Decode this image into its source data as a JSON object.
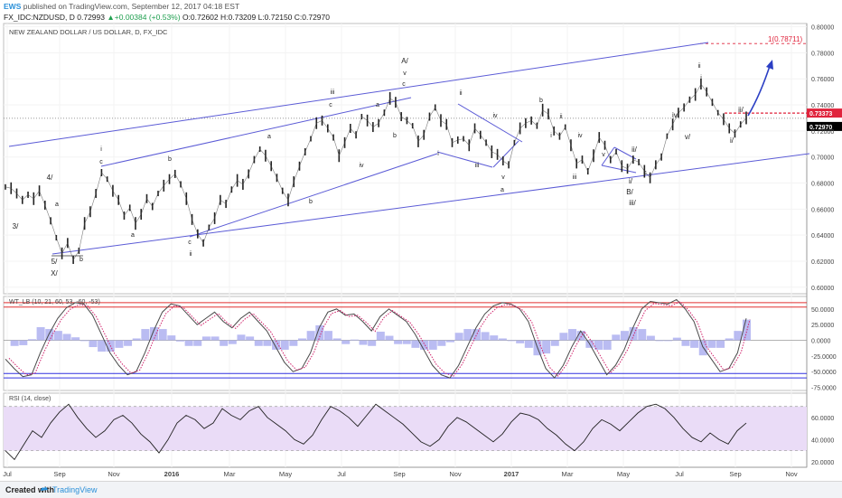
{
  "header": {
    "user": "EWS",
    "published_text": "published on TradingView.com, September 12, 2017 04:18 EST",
    "symbol_line": "FX_IDC:NZDUSD, D",
    "price": "0.72993",
    "change": "+0.00384 (+0.53%)",
    "ohlc": "O:0.72602 H:0.73209 L:0.72150 C:0.72970"
  },
  "footer": {
    "created_with": "Created with",
    "brand": "TradingView"
  },
  "colors": {
    "pattern_line": "#5b5bd6",
    "target_arrow": "#2b3fc4",
    "red_level": "#e0243c",
    "osc_main": "#4a4a4a",
    "osc_signal": "#d0206a",
    "rsi_band": "#eadcf7",
    "histogram": "#a9abef"
  },
  "chart_data": [
    {
      "type": "line",
      "title": "NEW ZEALAND DOLLAR / US DOLLAR, D, FX_IDC",
      "x_ticks": [
        "Jul",
        "Sep",
        "Nov",
        "2016",
        "Mar",
        "May",
        "Jul",
        "Sep",
        "Nov",
        "2017",
        "Mar",
        "May",
        "Jul",
        "Sep",
        "Nov"
      ],
      "y_ticks": [
        "0.80000",
        "0.78000",
        "0.76000",
        "0.74000",
        "0.72000",
        "0.70000",
        "0.68000",
        "0.66000",
        "0.64000",
        "0.62000",
        "0.60000"
      ],
      "ylim": [
        0.595,
        0.8025
      ],
      "series": [
        {
          "values": [
            0.677,
            0.676,
            0.672,
            0.667,
            0.671,
            0.668,
            0.674,
            0.663,
            0.651,
            0.638,
            0.626,
            0.634,
            0.621,
            0.628,
            0.649,
            0.658,
            0.672,
            0.688,
            0.683,
            0.674,
            0.667,
            0.655,
            0.661,
            0.649,
            0.656,
            0.668,
            0.662,
            0.672,
            0.678,
            0.683,
            0.687,
            0.679,
            0.668,
            0.652,
            0.641,
            0.634,
            0.646,
            0.653,
            0.667,
            0.664,
            0.675,
            0.682,
            0.679,
            0.687,
            0.698,
            0.706,
            0.701,
            0.693,
            0.684,
            0.674,
            0.667,
            0.681,
            0.693,
            0.704,
            0.714,
            0.726,
            0.728,
            0.722,
            0.715,
            0.701,
            0.711,
            0.722,
            0.717,
            0.731,
            0.728,
            0.723,
            0.726,
            0.734,
            0.745,
            0.742,
            0.731,
            0.728,
            0.724,
            0.712,
            0.717,
            0.731,
            0.738,
            0.728,
            0.725,
            0.711,
            0.713,
            0.714,
            0.709,
            0.722,
            0.717,
            0.711,
            0.704,
            0.702,
            0.697,
            0.694,
            0.711,
            0.722,
            0.726,
            0.728,
            0.724,
            0.736,
            0.733,
            0.72,
            0.716,
            0.723,
            0.709,
            0.695,
            0.698,
            0.689,
            0.701,
            0.715,
            0.709,
            0.698,
            0.704,
            0.693,
            0.691,
            0.698,
            0.696,
            0.689,
            0.684,
            0.694,
            0.7,
            0.716,
            0.725,
            0.734,
            0.738,
            0.744,
            0.748,
            0.756,
            0.75,
            0.742,
            0.734,
            0.729,
            0.722,
            0.718,
            0.725,
            0.73
          ]
        }
      ],
      "price_labels": [
        "0.73373",
        "0.72970"
      ],
      "target_label": "1(0.78711)",
      "annotations": [
        "3/",
        "4/",
        "a",
        "5/",
        "X/",
        "b",
        "i",
        "c",
        "a",
        "b",
        "c",
        "ii",
        "a",
        "b",
        "iii",
        "c",
        "iv",
        "a",
        "b",
        "A/",
        "v",
        "c",
        "i",
        "ii",
        "iii",
        "iv",
        "v",
        "a",
        "b",
        "i",
        "ii",
        "iii",
        "iv",
        "v",
        "i/",
        "ii/",
        "c",
        "B/",
        "iii/",
        "iv/",
        "v/",
        "i",
        "ii",
        "i/",
        "ii/"
      ]
    },
    {
      "type": "line",
      "title": "WT_LB (10, 21, 60, 53, -60, -53)",
      "y_ticks": [
        "50.0000",
        "25.0000",
        "0.0000",
        "-25.0000",
        "-50.0000",
        "-75.0000"
      ],
      "ylim": [
        -80,
        70
      ],
      "series": [
        {
          "values": [
            -30,
            -45,
            -58,
            -55,
            -20,
            10,
            35,
            52,
            60,
            58,
            40,
            10,
            -20,
            -40,
            -55,
            -50,
            -20,
            15,
            45,
            58,
            55,
            40,
            25,
            35,
            45,
            30,
            20,
            35,
            45,
            30,
            15,
            -10,
            -35,
            -50,
            -45,
            -20,
            20,
            45,
            50,
            40,
            42,
            30,
            15,
            38,
            50,
            40,
            30,
            10,
            -15,
            -40,
            -55,
            -60,
            -40,
            -10,
            20,
            42,
            55,
            60,
            58,
            50,
            30,
            -10,
            -45,
            -60,
            -40,
            -10,
            15,
            -5,
            -30,
            -55,
            -40,
            -15,
            20,
            50,
            62,
            60,
            58,
            65,
            50,
            30,
            -10,
            -30,
            -50,
            -45,
            -20,
            35
          ]
        }
      ],
      "levels": [
        60,
        53,
        0,
        -53,
        -60
      ]
    },
    {
      "type": "line",
      "title": "RSI (14, close)",
      "y_ticks": [
        "60.0000",
        "40.0000",
        "20.0000"
      ],
      "ylim": [
        15,
        82
      ],
      "series": [
        {
          "values": [
            30,
            22,
            35,
            48,
            42,
            55,
            65,
            72,
            60,
            50,
            42,
            48,
            58,
            62,
            55,
            45,
            38,
            28,
            40,
            55,
            62,
            58,
            50,
            55,
            68,
            62,
            58,
            66,
            70,
            60,
            54,
            48,
            40,
            36,
            44,
            58,
            70,
            66,
            60,
            52,
            62,
            72,
            66,
            60,
            54,
            46,
            38,
            34,
            40,
            52,
            60,
            56,
            50,
            44,
            38,
            45,
            56,
            64,
            62,
            58,
            50,
            44,
            36,
            30,
            38,
            50,
            58,
            54,
            48,
            56,
            64,
            70,
            72,
            68,
            60,
            50,
            42,
            38,
            46,
            40,
            36,
            48,
            55
          ]
        }
      ],
      "band": [
        30,
        70
      ]
    }
  ]
}
